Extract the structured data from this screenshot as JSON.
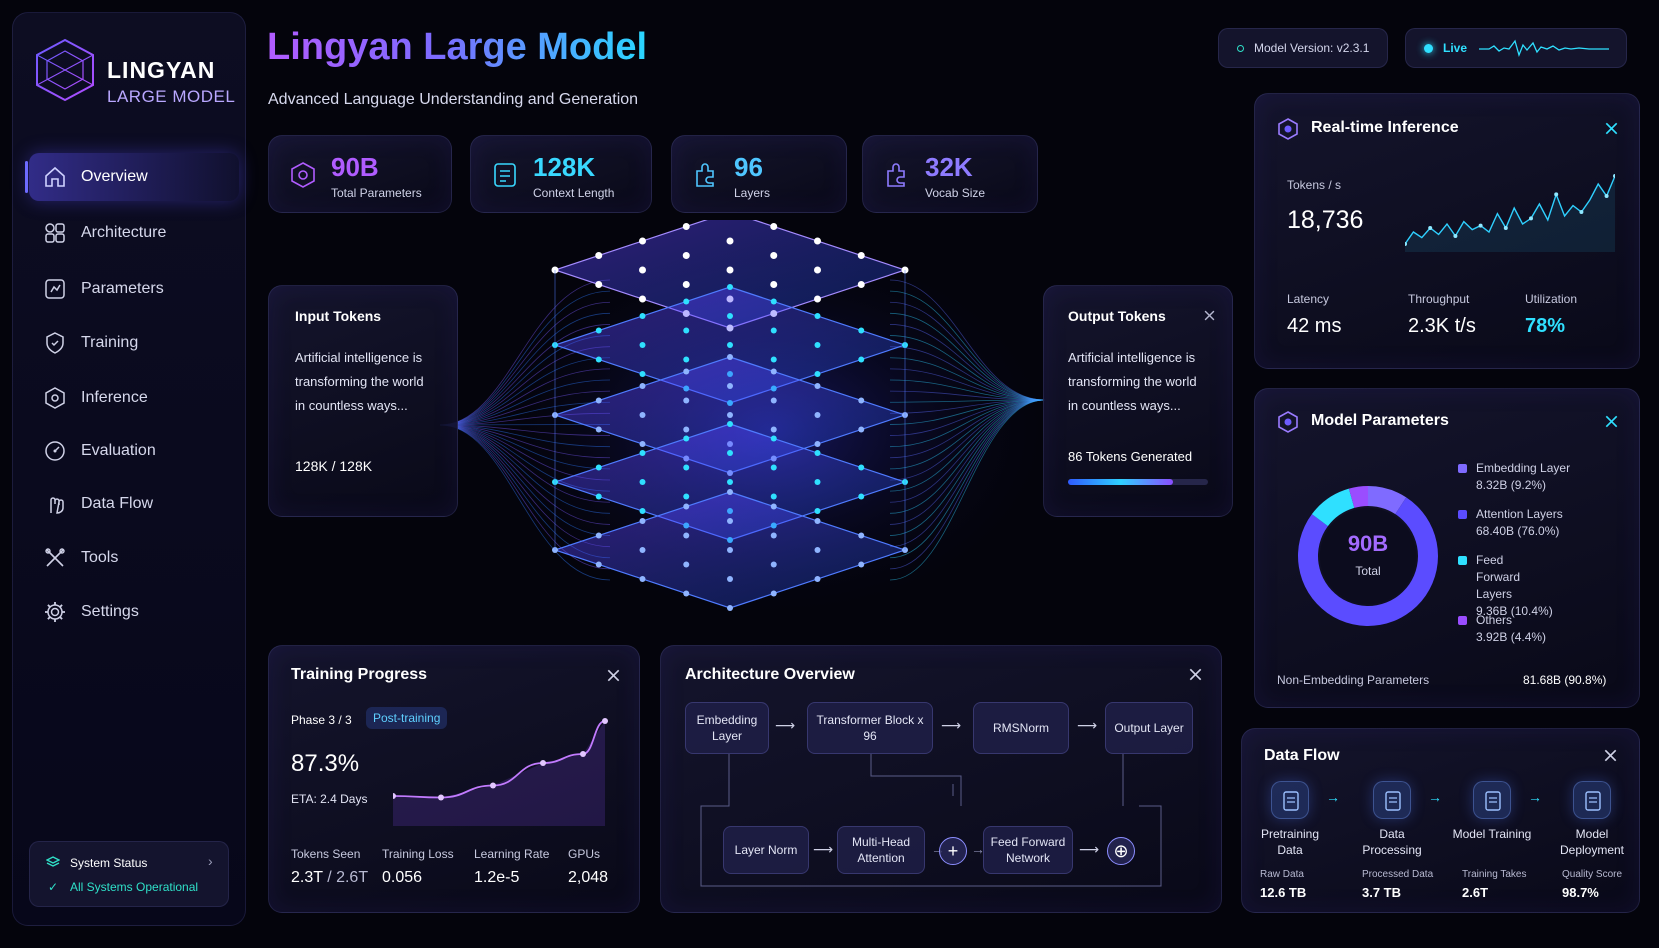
{
  "brand": {
    "title": "LINGYAN",
    "subtitle": "LARGE MODEL"
  },
  "sidebar": {
    "items": [
      {
        "label": "Overview",
        "icon": "home-icon"
      },
      {
        "label": "Architecture",
        "icon": "grid-icon"
      },
      {
        "label": "Parameters",
        "icon": "sliders-icon"
      },
      {
        "label": "Training",
        "icon": "shield-icon"
      },
      {
        "label": "Inference",
        "icon": "hexagon-icon"
      },
      {
        "label": "Evaluation",
        "icon": "gauge-icon"
      },
      {
        "label": "Data Flow",
        "icon": "hand-icon"
      },
      {
        "label": "Tools",
        "icon": "tools-icon"
      },
      {
        "label": "Settings",
        "icon": "gear-icon"
      }
    ],
    "status_title": "System Status",
    "status_text": "All Systems Operational"
  },
  "header": {
    "title": "Lingyan Large Model",
    "subtitle": "Advanced Language Understanding and Generation",
    "model_version": "Model Version: v2.3.1",
    "live_label": "Live"
  },
  "stats": [
    {
      "value": "90B",
      "label": "Total Parameters",
      "color": "#b05cff"
    },
    {
      "value": "128K",
      "label": "Context Length",
      "color": "#39d8ff"
    },
    {
      "value": "96",
      "label": "Layers",
      "color": "#4fc6ff"
    },
    {
      "value": "32K",
      "label": "Vocab Size",
      "color": "#8e7bff"
    }
  ],
  "input_tokens": {
    "title": "Input Tokens",
    "text": [
      "Artificial intelligence is",
      "transforming the world",
      "in countless ways..."
    ],
    "count": "128K / 128K"
  },
  "output_tokens": {
    "title": "Output Tokens",
    "text": [
      "Artificial intelligence is",
      "transforming the world",
      "in countless ways..."
    ],
    "generated": "86 Tokens Generated",
    "progress": 0.75
  },
  "realtime": {
    "title": "Real-time Inference",
    "tokens_label": "Tokens / s",
    "tokens_value": "18,736",
    "latency_label": "Latency",
    "latency_value": "42 ms",
    "throughput_label": "Throughput",
    "throughput_value": "2.3K t/s",
    "utilization_label": "Utilization",
    "utilization_value": "78%"
  },
  "params": {
    "title": "Model Parameters",
    "center_value": "90B",
    "center_label": "Total",
    "legend": [
      {
        "name": "Embedding Layer",
        "value": "8.32B (9.2%)",
        "color": "#7f6bff"
      },
      {
        "name": "Attention Layers",
        "value": "68.40B (76.0%)",
        "color": "#5b4cff"
      },
      {
        "name": "Feed Forward Layers",
        "value": "9.36B (10.4%)",
        "color": "#2fe0ff"
      },
      {
        "name": "Others",
        "value": "3.92B (4.4%)",
        "color": "#9a4dff"
      }
    ],
    "non_embedding_label": "Non-Embedding Parameters",
    "non_embedding_value": "81.68B (90.8%)"
  },
  "training": {
    "title": "Training Progress",
    "phase": "Phase 3 / 3",
    "badge": "Post-training",
    "percent": "87.3%",
    "eta": "ETA: 2.4 Days",
    "tokens_seen_label": "Tokens Seen",
    "tokens_seen_value": "2.3T",
    "tokens_seen_total": "/ 2.6T",
    "loss_label": "Training Loss",
    "loss_value": "0.056",
    "lr_label": "Learning Rate",
    "lr_value": "1.2e-5",
    "gpus_label": "GPUs",
    "gpus_value": "2,048"
  },
  "architecture": {
    "title": "Architecture Overview",
    "top": [
      "Embedding Layer",
      "Transformer Block x 96",
      "RMSNorm",
      "Output Layer"
    ],
    "bottom": [
      "Layer Norm",
      "Multi-Head Attention",
      "Feed Forward Network"
    ]
  },
  "dataflow": {
    "title": "Data Flow",
    "steps": [
      {
        "label": "Pretraining Data",
        "sub": "Raw Data",
        "value": "12.6 TB"
      },
      {
        "label": "Data Processing",
        "sub": "Processed Data",
        "value": "3.7 TB"
      },
      {
        "label": "Model Training",
        "sub": "Training Takes",
        "value": "2.6T"
      },
      {
        "label": "Model Deployment",
        "sub": "Quality Score",
        "value": "98.7%"
      }
    ]
  },
  "chart_data": [
    {
      "type": "line",
      "ylabel": "Tokens / s",
      "values": [
        10,
        25,
        18,
        30,
        22,
        35,
        20,
        38,
        28,
        33,
        25,
        48,
        30,
        55,
        35,
        42,
        60,
        40,
        72,
        45,
        58,
        50,
        65,
        85,
        70,
        95
      ]
    },
    {
      "type": "pie",
      "labels": [
        "Embedding Layer",
        "Attention Layers",
        "Feed Forward Layers",
        "Others"
      ],
      "values": [
        9.2,
        76.0,
        10.4,
        4.4
      ]
    },
    {
      "type": "line",
      "values": [
        20,
        19,
        27,
        42,
        48,
        70
      ]
    }
  ]
}
